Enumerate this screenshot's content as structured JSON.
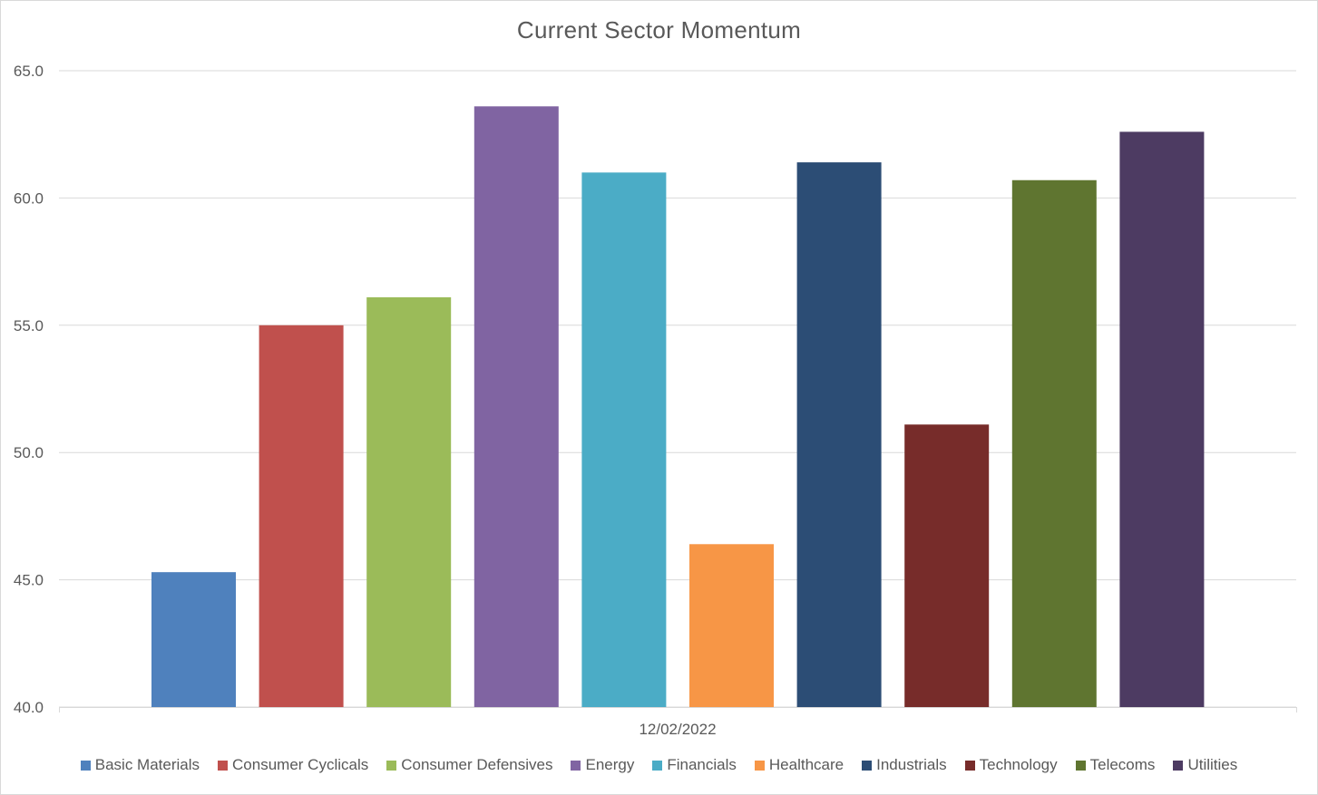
{
  "chart_data": {
    "type": "bar",
    "title": "Current Sector Momentum",
    "xlabel": "",
    "ylabel": "",
    "categories": [
      "12/02/2022"
    ],
    "ylim": [
      40,
      65
    ],
    "yticks": [
      "40.0",
      "45.0",
      "50.0",
      "55.0",
      "60.0",
      "65.0"
    ],
    "grid": true,
    "legend_position": "bottom",
    "series": [
      {
        "name": "Basic Materials",
        "values": [
          45.3
        ],
        "color": "#4F81BD"
      },
      {
        "name": "Consumer Cyclicals",
        "values": [
          55.0
        ],
        "color": "#C0504D"
      },
      {
        "name": "Consumer Defensives",
        "values": [
          56.1
        ],
        "color": "#9BBB59"
      },
      {
        "name": "Energy",
        "values": [
          63.6
        ],
        "color": "#8064A2"
      },
      {
        "name": "Financials",
        "values": [
          61.0
        ],
        "color": "#4BACC6"
      },
      {
        "name": "Healthcare",
        "values": [
          46.4
        ],
        "color": "#F79646"
      },
      {
        "name": "Industrials",
        "values": [
          61.4
        ],
        "color": "#2C4D75"
      },
      {
        "name": "Technology",
        "values": [
          51.1
        ],
        "color": "#772C2A"
      },
      {
        "name": "Telecoms",
        "values": [
          60.7
        ],
        "color": "#5F7530"
      },
      {
        "name": "Utilities",
        "values": [
          62.6
        ],
        "color": "#4D3B62"
      }
    ]
  }
}
